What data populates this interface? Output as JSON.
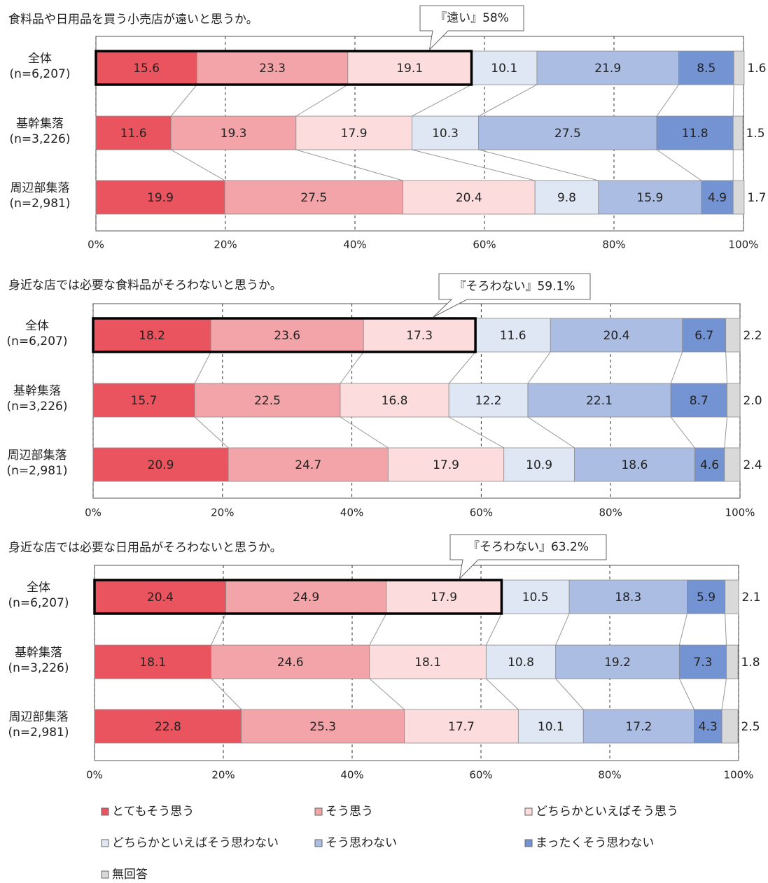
{
  "chart_data": [
    {
      "type": "bar",
      "title": "食料品や日用品を買う小売店が遠いと思うか。",
      "annotation": "『遠い』58%",
      "categories": [
        "全体\n(n=6,207)",
        "基幹集落\n(n=3,226)",
        "周辺部集落\n(n=2,981)"
      ],
      "series": [
        {
          "name": "とてもそう思う",
          "color": "#e9545e",
          "values": [
            15.6,
            11.6,
            19.9
          ]
        },
        {
          "name": "そう思う",
          "color": "#f3a4a9",
          "values": [
            23.3,
            19.3,
            27.5
          ]
        },
        {
          "name": "どちらかといえばそう思う",
          "color": "#fcdcdd",
          "values": [
            19.1,
            17.9,
            20.4
          ]
        },
        {
          "name": "どちらかといえばそう思わない",
          "color": "#dfe6f4",
          "values": [
            10.1,
            10.3,
            9.8
          ]
        },
        {
          "name": "そう思わない",
          "color": "#abbde2",
          "values": [
            21.9,
            27.5,
            15.9
          ]
        },
        {
          "name": "まったくそう思わない",
          "color": "#7493d2",
          "values": [
            8.5,
            11.8,
            4.9
          ]
        },
        {
          "name": "無回答",
          "color": "#d9d9d9",
          "values": [
            1.6,
            1.5,
            1.7
          ]
        }
      ],
      "xlim": [
        0,
        100
      ],
      "xticks": [
        {
          "value": 0,
          "label": "0%"
        },
        {
          "value": 20,
          "label": "20%"
        },
        {
          "value": 40,
          "label": "40%"
        },
        {
          "value": 60,
          "label": "60%"
        },
        {
          "value": 80,
          "label": "80%"
        },
        {
          "value": 100,
          "label": "100%"
        }
      ],
      "grid": true
    },
    {
      "type": "bar",
      "title": "身近な店では必要な食料品がそろわないと思うか。",
      "annotation": "『そろわない』59.1%",
      "categories": [
        "全体\n(n=6,207)",
        "基幹集落\n(n=3,226)",
        "周辺部集落\n(n=2,981)"
      ],
      "series": [
        {
          "color": "#e9545e",
          "values": [
            18.2,
            15.7,
            20.9
          ]
        },
        {
          "color": "#f3a4a9",
          "values": [
            23.6,
            22.5,
            24.7
          ]
        },
        {
          "color": "#fcdcdd",
          "values": [
            17.3,
            16.8,
            17.9
          ]
        },
        {
          "color": "#dfe6f4",
          "values": [
            11.6,
            12.2,
            10.9
          ]
        },
        {
          "color": "#abbde2",
          "values": [
            20.4,
            22.1,
            18.6
          ]
        },
        {
          "color": "#7493d2",
          "values": [
            6.7,
            8.7,
            4.6
          ]
        },
        {
          "color": "#d9d9d9",
          "values": [
            2.2,
            2.0,
            2.4
          ],
          "value_labels": [
            "2.2",
            "2.0",
            "2.4"
          ]
        }
      ],
      "xlim": [
        0,
        100
      ],
      "xticks": [
        {
          "value": 0,
          "label": "0%"
        },
        {
          "value": 20,
          "label": "20%"
        },
        {
          "value": 40,
          "label": "40%"
        },
        {
          "value": 60,
          "label": "60%"
        },
        {
          "value": 80,
          "label": "80%"
        },
        {
          "value": 100,
          "label": "100%"
        }
      ],
      "grid": true
    },
    {
      "type": "bar",
      "title": "身近な店では必要な日用品がそろわないと思うか。",
      "annotation": "『そろわない』63.2%",
      "categories": [
        "全体\n(n=6,207)",
        "基幹集落\n(n=3,226)",
        "周辺部集落\n(n=2,981)"
      ],
      "series": [
        {
          "color": "#e9545e",
          "values": [
            20.4,
            18.1,
            22.8
          ]
        },
        {
          "color": "#f3a4a9",
          "values": [
            24.9,
            24.6,
            25.3
          ]
        },
        {
          "color": "#fcdcdd",
          "values": [
            17.9,
            18.1,
            17.7
          ]
        },
        {
          "color": "#dfe6f4",
          "values": [
            10.5,
            10.8,
            10.1
          ]
        },
        {
          "color": "#abbde2",
          "values": [
            18.3,
            19.2,
            17.2
          ]
        },
        {
          "color": "#7493d2",
          "values": [
            5.9,
            7.3,
            4.3
          ]
        },
        {
          "color": "#d9d9d9",
          "values": [
            2.1,
            1.8,
            2.5
          ]
        }
      ],
      "xlim": [
        0,
        100
      ],
      "xticks": [
        {
          "value": 0,
          "label": "0%"
        },
        {
          "value": 20,
          "label": "20%"
        },
        {
          "value": 40,
          "label": "40%"
        },
        {
          "value": 60,
          "label": "60%"
        },
        {
          "value": 80,
          "label": "80%"
        },
        {
          "value": 100,
          "label": "100%"
        }
      ],
      "grid": true
    }
  ]
}
